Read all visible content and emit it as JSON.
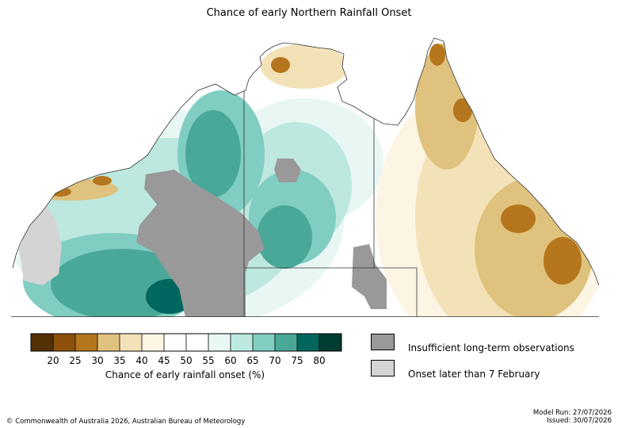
{
  "title": "Chance of early Northern Rainfall Onset",
  "colorbar": {
    "label": "Chance of early rainfall onset (%)",
    "colors": [
      "#543005",
      "#8c510a",
      "#b5761e",
      "#dfc27d",
      "#f3e2b8",
      "#fdf5e4",
      "#ffffff",
      "#ffffff",
      "#e9f7f4",
      "#bde8df",
      "#80cdc1",
      "#49a898",
      "#01665e",
      "#003c30"
    ],
    "ticks": [
      "20",
      "25",
      "30",
      "35",
      "40",
      "45",
      "50",
      "55",
      "60",
      "65",
      "70",
      "75",
      "80"
    ]
  },
  "legend": [
    {
      "label": "Insufficient long-term observations",
      "color": "#999999"
    },
    {
      "label": "Onset later than 7 February",
      "color": "#d4d4d4"
    }
  ],
  "footer": {
    "copyright": "© Commonwealth of Australia 2026, Australian Bureau of Meteorology",
    "model_run": "Model Run: 27/07/2026",
    "issued": "Issued: 30/07/2026"
  }
}
